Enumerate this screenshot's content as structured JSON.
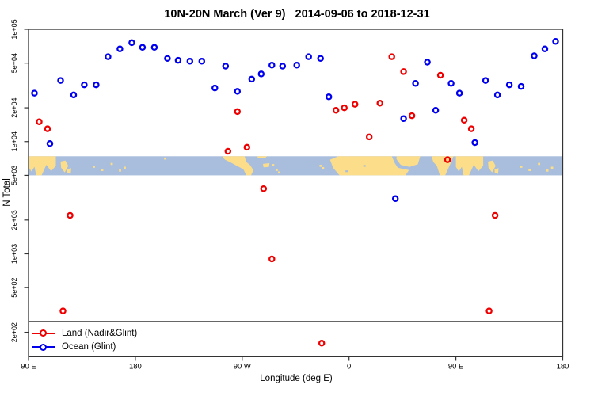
{
  "title": "10N-20N March (Ver 9)   2014-09-06 to 2018-12-31",
  "chart_data": {
    "type": "scatter",
    "title": "10N-20N March (Ver 9)   2014-09-06 to 2018-12-31",
    "xlabel": "Longitude (deg E)",
    "ylabel": "N Total",
    "x_axis": {
      "min": 90,
      "max": 540,
      "ticks": [
        {
          "pos": 90,
          "label": "90 E"
        },
        {
          "pos": 180,
          "label": "180"
        },
        {
          "pos": 270,
          "label": "90 W"
        },
        {
          "pos": 360,
          "label": "0"
        },
        {
          "pos": 450,
          "label": "90 E"
        },
        {
          "pos": 540,
          "label": "180"
        }
      ]
    },
    "y_axis": {
      "scale": "log",
      "ylim": [
        122,
        100000
      ],
      "ticks": [
        {
          "value": 100000,
          "label": "1e+05"
        },
        {
          "value": 50000,
          "label": "5e+04"
        },
        {
          "value": 20000,
          "label": "2e+04"
        },
        {
          "value": 10000,
          "label": "1e+04"
        },
        {
          "value": 5000,
          "label": "5e+03"
        },
        {
          "value": 2000,
          "label": "2e+03"
        },
        {
          "value": 1000,
          "label": "1e+03"
        },
        {
          "value": 500,
          "label": "5e+02"
        },
        {
          "value": 200,
          "label": "2e+02"
        }
      ]
    },
    "reference_line_value": 250,
    "map_band": {
      "value_top": 7400,
      "value_bottom": 5000,
      "ocean_color": "#A9BEDC",
      "land_color": "#FBDD8A",
      "land_polygons": [
        [
          [
            90,
            0
          ],
          [
            113,
            0
          ],
          [
            113,
            0.5
          ],
          [
            109,
            0.78
          ],
          [
            105,
            0.45
          ],
          [
            101,
            1
          ],
          [
            96.5,
            1
          ],
          [
            95,
            0.55
          ],
          [
            92.5,
            0.8
          ],
          [
            90,
            0.55
          ]
        ],
        [
          [
            117,
            0.28
          ],
          [
            121,
            0.22
          ],
          [
            123.5,
            0.5
          ],
          [
            120.5,
            0.85
          ],
          [
            117.5,
            0.6
          ]
        ],
        [
          [
            122.5,
            0.68
          ],
          [
            126,
            0.62
          ],
          [
            125.5,
            0.92
          ],
          [
            122.8,
            0.88
          ]
        ],
        [
          [
            254,
            0
          ],
          [
            272,
            0
          ],
          [
            273.5,
            0.3
          ],
          [
            276.5,
            0.45
          ],
          [
            279.5,
            0.72
          ],
          [
            277.5,
            1
          ],
          [
            273.5,
            1
          ],
          [
            271,
            0.68
          ],
          [
            265.5,
            0.5
          ],
          [
            259.5,
            0.3
          ],
          [
            255.5,
            0.18
          ],
          [
            254,
            0.08
          ]
        ],
        [
          [
            283,
            0
          ],
          [
            291,
            0
          ],
          [
            289,
            0.1
          ],
          [
            283,
            0.07
          ]
        ],
        [
          [
            287.5,
            0.4
          ],
          [
            293,
            0.36
          ],
          [
            292.5,
            0.56
          ],
          [
            288,
            0.58
          ]
        ],
        [
          [
            344,
            0.18
          ],
          [
            351,
            0
          ],
          [
            396,
            0
          ],
          [
            398.5,
            0.35
          ],
          [
            401,
            0.6
          ],
          [
            410.5,
            0.72
          ],
          [
            407.5,
            1
          ],
          [
            352,
            1
          ],
          [
            346.5,
            0.6
          ]
        ],
        [
          [
            400,
            0
          ],
          [
            420,
            0
          ],
          [
            418,
            0.42
          ],
          [
            411,
            0.56
          ],
          [
            403.5,
            0.45
          ],
          [
            400,
            0.16
          ]
        ],
        [
          [
            429.5,
            0
          ],
          [
            448,
            0
          ],
          [
            444.5,
            0.52
          ],
          [
            441,
            1
          ],
          [
            436.5,
            1
          ],
          [
            434,
            0.5
          ],
          [
            431,
            0.3
          ]
        ],
        [
          [
            450,
            0
          ],
          [
            473,
            0
          ],
          [
            473,
            0.5
          ],
          [
            469,
            0.78
          ],
          [
            465,
            0.45
          ],
          [
            461,
            1
          ],
          [
            456.5,
            1
          ],
          [
            455,
            0.55
          ],
          [
            452.5,
            0.8
          ],
          [
            450,
            0.55
          ]
        ],
        [
          [
            477,
            0.28
          ],
          [
            481,
            0.22
          ],
          [
            483.5,
            0.5
          ],
          [
            480.5,
            0.85
          ],
          [
            477.5,
            0.6
          ]
        ],
        [
          [
            482.5,
            0.68
          ],
          [
            486,
            0.62
          ],
          [
            485.5,
            0.92
          ],
          [
            482.8,
            0.88
          ]
        ]
      ],
      "island_dots": [
        [
          145,
          0.55
        ],
        [
          152,
          0.72
        ],
        [
          160,
          0.4
        ],
        [
          167,
          0.75
        ],
        [
          171,
          0.6
        ],
        [
          205,
          0.12
        ],
        [
          296,
          0.46
        ],
        [
          299,
          0.72
        ],
        [
          301,
          0.85
        ],
        [
          336,
          0.5
        ],
        [
          338,
          0.62
        ],
        [
          505,
          0.55
        ],
        [
          512,
          0.72
        ],
        [
          520,
          0.4
        ],
        [
          527,
          0.75
        ],
        [
          531,
          0.6
        ]
      ],
      "lake_dots": [
        [
          373,
          0.5
        ],
        [
          358,
          0.78
        ]
      ]
    },
    "series": [
      {
        "name": "Land (Nadir&Glint)",
        "color": "#ee0000",
        "points": [
          [
            99,
            15000
          ],
          [
            106,
            13000
          ],
          [
            119,
            310
          ],
          [
            125,
            2200
          ],
          [
            258,
            8200
          ],
          [
            266,
            18500
          ],
          [
            274,
            8900
          ],
          [
            288,
            3800
          ],
          [
            295,
            900
          ],
          [
            337,
            160
          ],
          [
            349,
            19000
          ],
          [
            356,
            20000
          ],
          [
            365,
            21500
          ],
          [
            377,
            11000
          ],
          [
            386,
            22000
          ],
          [
            396,
            57000
          ],
          [
            406,
            42000
          ],
          [
            413,
            17000
          ],
          [
            437,
            39000
          ],
          [
            443,
            6900
          ],
          [
            457,
            15500
          ],
          [
            463,
            13000
          ],
          [
            478,
            310
          ],
          [
            483,
            2200
          ]
        ]
      },
      {
        "name": "Ocean (Glint)",
        "color": "#0000ee",
        "points": [
          [
            95,
            27000
          ],
          [
            108,
            9600
          ],
          [
            117,
            35000
          ],
          [
            128,
            26000
          ],
          [
            137,
            32000
          ],
          [
            147,
            32000
          ],
          [
            157,
            57000
          ],
          [
            167,
            67000
          ],
          [
            177,
            76000
          ],
          [
            186,
            69000
          ],
          [
            196,
            69000
          ],
          [
            207,
            55000
          ],
          [
            216,
            53000
          ],
          [
            226,
            52000
          ],
          [
            236,
            52000
          ],
          [
            247,
            30000
          ],
          [
            256,
            47000
          ],
          [
            266,
            28000
          ],
          [
            278,
            36000
          ],
          [
            286,
            40000
          ],
          [
            295,
            48000
          ],
          [
            304,
            47000
          ],
          [
            316,
            48000
          ],
          [
            326,
            57000
          ],
          [
            336,
            55000
          ],
          [
            343,
            25000
          ],
          [
            399,
            3100
          ],
          [
            406,
            16000
          ],
          [
            416,
            33000
          ],
          [
            426,
            51000
          ],
          [
            433,
            19000
          ],
          [
            446,
            33000
          ],
          [
            453,
            27000
          ],
          [
            466,
            9800
          ],
          [
            475,
            35000
          ],
          [
            485,
            26000
          ],
          [
            495,
            32000
          ],
          [
            505,
            31000
          ],
          [
            516,
            58000
          ],
          [
            525,
            67000
          ],
          [
            534,
            78000
          ]
        ]
      }
    ],
    "legend": {
      "position": "bottom-left"
    }
  }
}
